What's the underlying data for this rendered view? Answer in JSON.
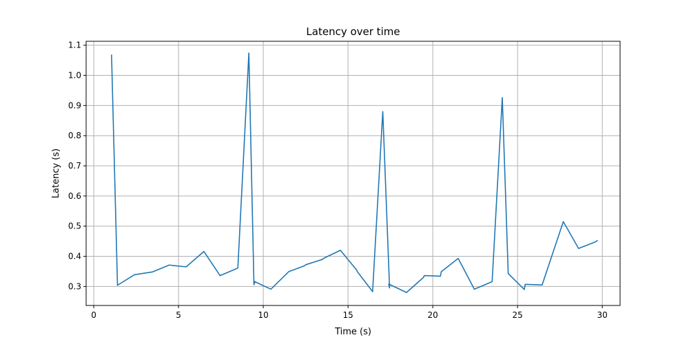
{
  "chart_data": {
    "type": "line",
    "title": "Latency over time",
    "xlabel": "Time (s)",
    "ylabel": "Latency (s)",
    "xlim": [
      -0.45,
      31.05
    ],
    "ylim": [
      0.237,
      1.113
    ],
    "grid": true,
    "line_color": "#1f77b4",
    "x_ticks": [
      0,
      5,
      10,
      15,
      20,
      25,
      30
    ],
    "x_tick_labels": [
      "0",
      "5",
      "10",
      "15",
      "20",
      "25",
      "30"
    ],
    "y_ticks": [
      0.3,
      0.4,
      0.5,
      0.6,
      0.7,
      0.8,
      0.9,
      1.0,
      1.1
    ],
    "y_tick_labels": [
      "0.3",
      "0.4",
      "0.5",
      "0.6",
      "0.7",
      "0.8",
      "0.9",
      "1.0",
      "1.1"
    ],
    "series": [
      {
        "x": [
          1.05,
          1.4,
          2.4,
          3.45,
          4.45,
          5.45,
          6.5,
          7.45,
          8.5,
          9.15,
          9.45,
          9.5,
          10.45,
          11.5,
          12.45,
          12.5,
          13.5,
          13.55,
          14.55,
          15.5,
          15.55,
          16.45,
          17.05,
          17.45,
          17.4,
          18.45,
          19.45,
          19.5,
          20.45,
          20.5,
          21.5,
          22.45,
          23.5,
          24.1,
          24.45,
          25.4,
          25.45,
          26.45,
          27.7,
          28.6,
          29.6,
          29.7
        ],
        "y": [
          1.067,
          0.304,
          0.339,
          0.348,
          0.371,
          0.365,
          0.416,
          0.336,
          0.361,
          1.074,
          0.306,
          0.316,
          0.291,
          0.349,
          0.369,
          0.372,
          0.39,
          0.393,
          0.42,
          0.355,
          0.349,
          0.283,
          0.88,
          0.295,
          0.308,
          0.28,
          0.33,
          0.336,
          0.334,
          0.349,
          0.393,
          0.291,
          0.316,
          0.926,
          0.343,
          0.29,
          0.307,
          0.305,
          0.515,
          0.426,
          0.448,
          0.452
        ]
      }
    ]
  }
}
